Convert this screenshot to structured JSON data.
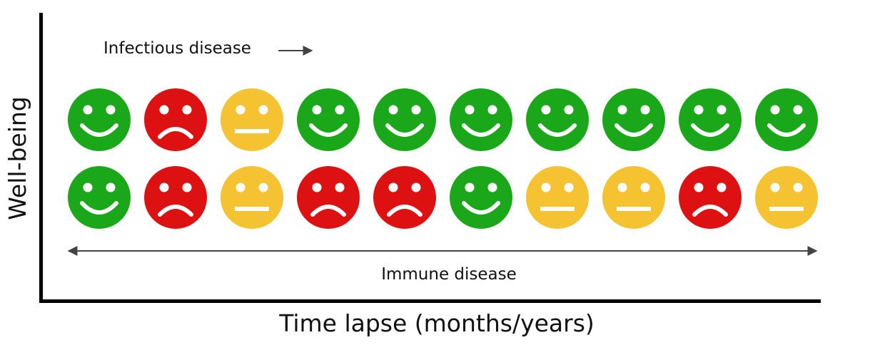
{
  "axes": {
    "y_label": "Well-being",
    "x_label": "Time lapse (months/years)"
  },
  "annotations": {
    "infectious_label": "Infectious disease",
    "immune_label": "Immune disease"
  },
  "colors": {
    "happy": "#1aa81a",
    "sad": "#dd1111",
    "neutral": "#f5c232",
    "axis": "#000000",
    "arrow": "#444444"
  },
  "rows": [
    {
      "name": "infectious-disease",
      "faces": [
        "happy",
        "sad",
        "neutral",
        "happy",
        "happy",
        "happy",
        "happy",
        "happy",
        "happy",
        "happy"
      ]
    },
    {
      "name": "immune-disease",
      "faces": [
        "happy",
        "sad",
        "neutral",
        "sad",
        "sad",
        "happy",
        "neutral",
        "neutral",
        "sad",
        "neutral"
      ]
    }
  ]
}
